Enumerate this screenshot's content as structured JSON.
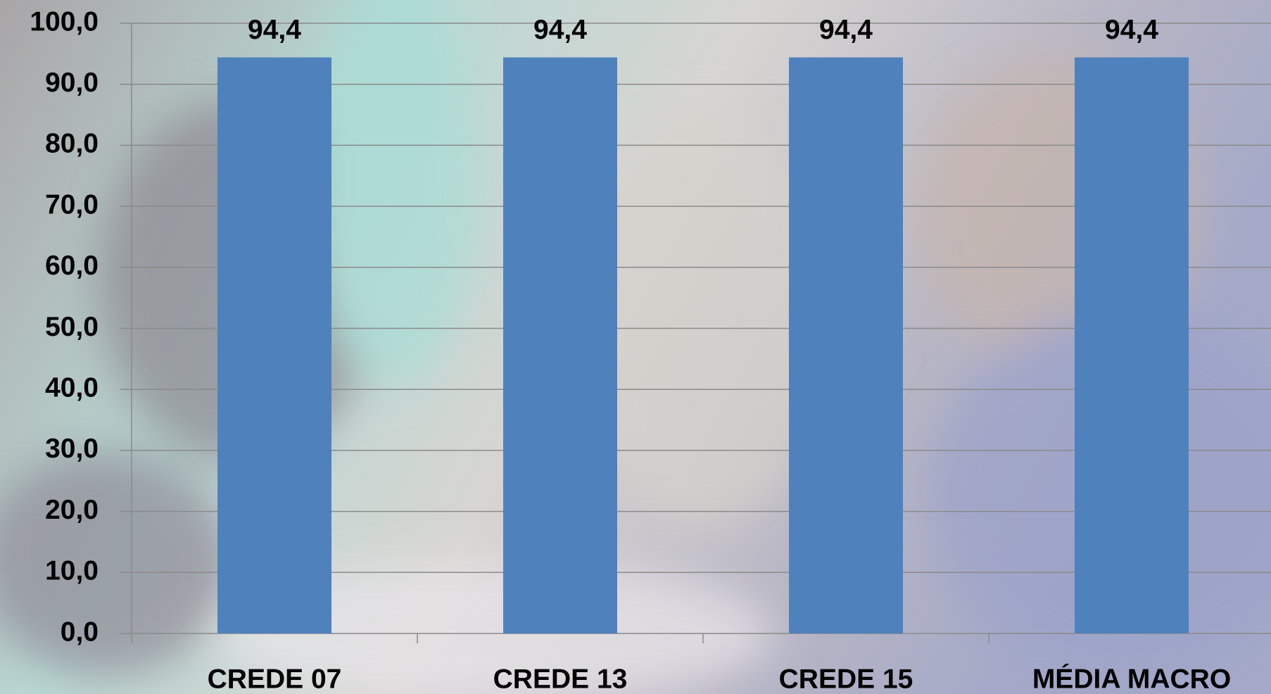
{
  "chart_data": {
    "type": "bar",
    "categories": [
      "CREDE 07",
      "CREDE 13",
      "CREDE 15",
      "MÉDIA MACRO"
    ],
    "values": [
      94.4,
      94.4,
      94.4,
      94.4
    ],
    "value_labels": [
      "94,4",
      "94,4",
      "94,4",
      "94,4"
    ],
    "color": "#4f81bd",
    "ylim": [
      0,
      100
    ],
    "yticks": [
      {
        "value": 0,
        "label": "0,0"
      },
      {
        "value": 10,
        "label": "10,0"
      },
      {
        "value": 20,
        "label": "20,0"
      },
      {
        "value": 30,
        "label": "30,0"
      },
      {
        "value": 40,
        "label": "40,0"
      },
      {
        "value": 50,
        "label": "50,0"
      },
      {
        "value": 60,
        "label": "60,0"
      },
      {
        "value": 70,
        "label": "70,0"
      },
      {
        "value": 80,
        "label": "80,0"
      },
      {
        "value": 90,
        "label": "90,0"
      },
      {
        "value": 100,
        "label": "100,0"
      }
    ],
    "grid": true
  }
}
